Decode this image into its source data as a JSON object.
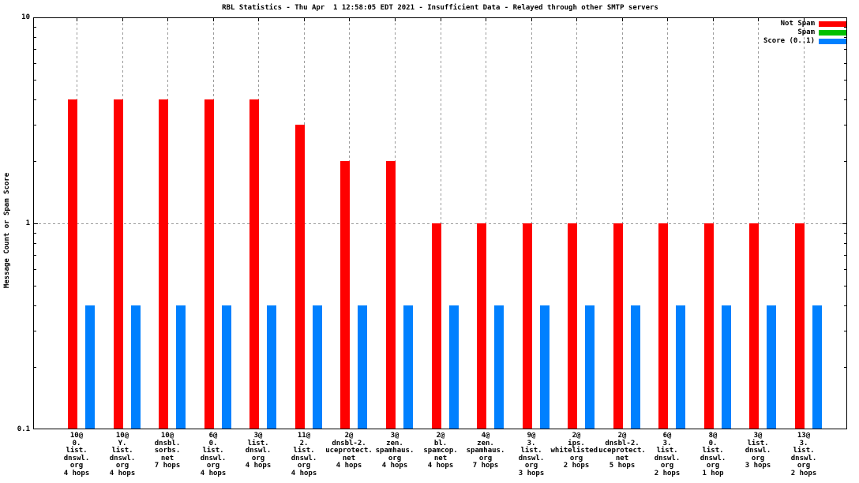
{
  "chart_data": {
    "type": "bar",
    "title": "RBL Statistics - Thu Apr  1 12:58:05 EDT 2021 - Insufficient Data - Relayed through other SMTP servers",
    "ylabel": "Message Count or Spam Score",
    "yscale": "log",
    "ylim": [
      0.1,
      10
    ],
    "yticks": [
      {
        "value": 10,
        "label": "10"
      },
      {
        "value": 1,
        "label": "1"
      },
      {
        "value": 0.1,
        "label": "0.1"
      }
    ],
    "grid": {
      "horizontal_dashed_at": 1,
      "vertical_dashed_per_category": true
    },
    "legend_position": "top-right-inside",
    "categories": [
      [
        "10@",
        "0.",
        "list.",
        "dnswl.",
        "org",
        "4 hops"
      ],
      [
        "10@",
        "Y.",
        "list.",
        "dnswl.",
        "org",
        "4 hops"
      ],
      [
        "10@",
        "dnsbl.",
        "sorbs.",
        "net",
        "7 hops"
      ],
      [
        "6@",
        "0.",
        "list.",
        "dnswl.",
        "org",
        "4 hops"
      ],
      [
        "3@",
        "list.",
        "dnswl.",
        "org",
        "4 hops"
      ],
      [
        "11@",
        "2.",
        "list.",
        "dnswl.",
        "org",
        "4 hops"
      ],
      [
        "2@",
        "dnsbl-2.",
        "uceprotect.",
        "net",
        "4 hops"
      ],
      [
        "3@",
        "zen.",
        "spamhaus.",
        "org",
        "4 hops"
      ],
      [
        "2@",
        "bl.",
        "spamcop.",
        "net",
        "4 hops"
      ],
      [
        "4@",
        "zen.",
        "spamhaus.",
        "org",
        "7 hops"
      ],
      [
        "9@",
        "3.",
        "list.",
        "dnswl.",
        "org",
        "3 hops"
      ],
      [
        "2@",
        "ips.",
        "whitelisted.",
        "org",
        "2 hops"
      ],
      [
        "2@",
        "dnsbl-2.",
        "uceprotect.",
        "net",
        "5 hops"
      ],
      [
        "6@",
        "3.",
        "list.",
        "dnswl.",
        "org",
        "2 hops"
      ],
      [
        "8@",
        "0.",
        "list.",
        "dnswl.",
        "org",
        "1 hop"
      ],
      [
        "3@",
        "list.",
        "dnswl.",
        "org",
        "3 hops"
      ],
      [
        "13@",
        "3.",
        "list.",
        "dnswl.",
        "org",
        "2 hops"
      ]
    ],
    "series": [
      {
        "name": "Not Spam",
        "color": "#ff0000",
        "values": [
          4,
          4,
          4,
          4,
          4,
          3,
          2,
          2,
          1,
          1,
          1,
          1,
          1,
          1,
          1,
          1,
          1
        ]
      },
      {
        "name": "Spam",
        "color": "#00c000",
        "values": [
          0,
          0,
          0,
          0,
          0,
          0,
          0,
          0,
          0,
          0,
          0,
          0,
          0,
          0,
          0,
          0,
          0
        ]
      },
      {
        "name": "Score (0..1)",
        "color": "#0080ff",
        "values": [
          0.4,
          0.4,
          0.4,
          0.4,
          0.4,
          0.4,
          0.4,
          0.4,
          0.4,
          0.4,
          0.4,
          0.4,
          0.4,
          0.4,
          0.4,
          0.4,
          0.4
        ]
      }
    ]
  }
}
